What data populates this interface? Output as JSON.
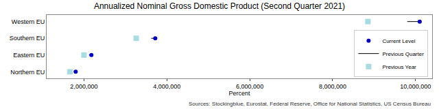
{
  "chart_data": {
    "type": "dot",
    "orientation": "horizontal",
    "title": "Annualized Nominal Gross Domestic Product (Second Quarter 2021)",
    "x_label": "Percent",
    "annotations": [
      "Sources: Stockingblue, Eurostat, Federal Reserve, Office for National Statistics, US Census Bureau"
    ],
    "categories": [
      "Western EU",
      "Southern EU",
      "Eastern EU",
      "Northern EU"
    ],
    "series": [
      {
        "name": "Current Level",
        "color": "#0000cc",
        "marker": "circle",
        "values": [
          10100000,
          3720000,
          2180000,
          1800000
        ]
      },
      {
        "name": "Previous Quarter",
        "color": "#000000",
        "line_style": "solid",
        "values": [
          9800000,
          3620000,
          2120000,
          1760000
        ]
      },
      {
        "name": "Previous Year",
        "color": "#a9dbe3",
        "marker": "square",
        "values": [
          8850000,
          3260000,
          2000000,
          1660000
        ]
      }
    ],
    "xlim": [
      1100000,
      10400000
    ],
    "xticks": [
      {
        "value": 2000000,
        "label": "2,000,000"
      },
      {
        "value": 4000000,
        "label": "4,000,000"
      },
      {
        "value": 6000000,
        "label": "6,000,000"
      },
      {
        "value": 8000000,
        "label": "8,000,000"
      },
      {
        "value": 10000000,
        "label": "10,000,000"
      }
    ],
    "grid": false,
    "legend": "bottom-right"
  }
}
